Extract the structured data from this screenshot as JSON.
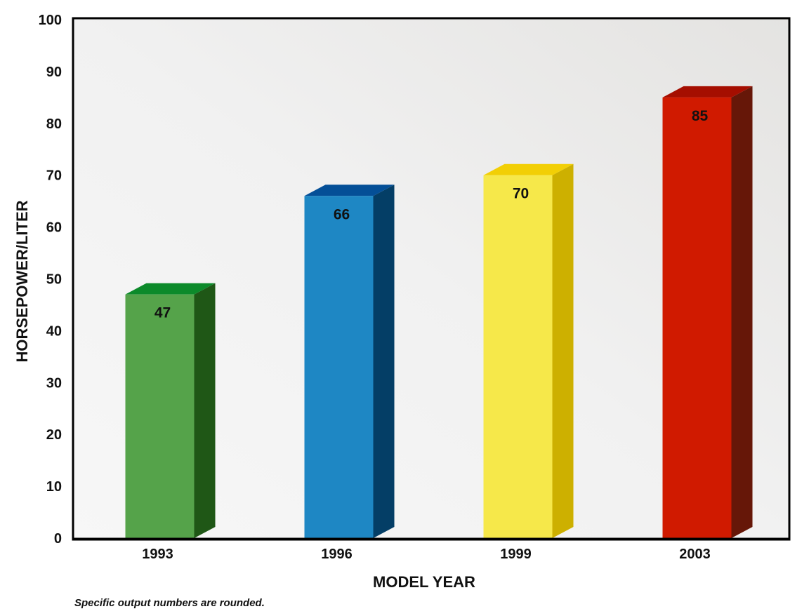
{
  "chart_data": {
    "type": "bar",
    "categories": [
      "1993",
      "1996",
      "1999",
      "2003"
    ],
    "values": [
      47,
      66,
      70,
      85
    ],
    "data_labels": [
      "47",
      "66",
      "70",
      "85"
    ],
    "xlabel": "MODEL YEAR",
    "ylabel": "HORSEPOWER/LITER",
    "ylim": [
      0,
      100
    ],
    "yticks": [
      "0",
      "10",
      "20",
      "30",
      "40",
      "50",
      "60",
      "70",
      "80",
      "90",
      "100"
    ],
    "grid": false,
    "style": "3d-bar",
    "bar_colors": [
      {
        "front": "#55a34a",
        "side": "#1f5716",
        "top": "#0c8a2a"
      },
      {
        "front": "#1e87c4",
        "side": "#043e66",
        "top": "#044f97"
      },
      {
        "front": "#f6e84a",
        "side": "#cdb000",
        "top": "#f2cf05"
      },
      {
        "front": "#d01a00",
        "side": "#661708",
        "top": "#a50e00"
      }
    ],
    "footnote": "Specific output numbers are rounded."
  }
}
